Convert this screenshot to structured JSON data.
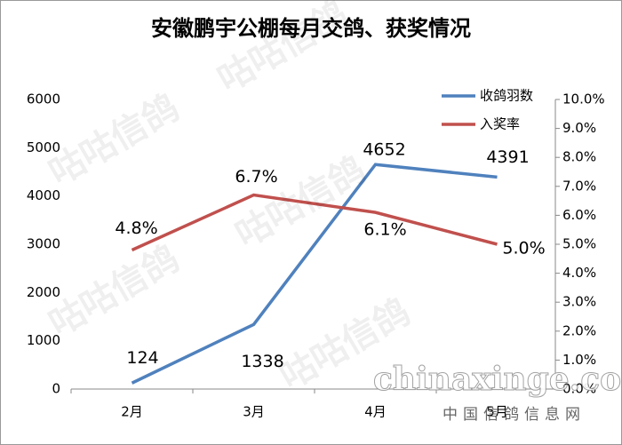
{
  "chart_data": {
    "type": "line",
    "title": "安徽鹏宇公棚每月交鸽、获奖情况",
    "categories": [
      "2月",
      "3月",
      "4月",
      "5月"
    ],
    "series": [
      {
        "name": "收鸽羽数",
        "color": "#4f81bd",
        "values": [
          124,
          1338,
          4652,
          4391
        ]
      },
      {
        "name": "入奖率",
        "color": "#c0504d",
        "axis": "y2",
        "values": [
          4.8,
          6.7,
          6.1,
          5.0
        ],
        "value_labels": [
          "4.8%",
          "6.7%",
          "6.1%",
          "5.0%"
        ]
      }
    ],
    "ylim": [
      0,
      6000
    ],
    "yticks": [
      0,
      1000,
      2000,
      3000,
      4000,
      5000,
      6000
    ],
    "y2lim": [
      0,
      10
    ],
    "y2ticks": [
      {
        "value": 0,
        "label": "0.0%"
      },
      {
        "value": 1,
        "label": "1.0%"
      },
      {
        "value": 2,
        "label": "2.0%"
      },
      {
        "value": 3,
        "label": "3.0%"
      },
      {
        "value": 4,
        "label": "4.0%"
      },
      {
        "value": 5,
        "label": "5.0%"
      },
      {
        "value": 6,
        "label": "6.0%"
      },
      {
        "value": 7,
        "label": "7.0%"
      },
      {
        "value": 8,
        "label": "8.0%"
      },
      {
        "value": 9,
        "label": "9.0%"
      },
      {
        "value": 10,
        "label": "10.0%"
      }
    ],
    "legend": "top-right",
    "annotations": [
      "咕咕信鸽",
      "chinaxinge.com",
      "中国信鸽信息网"
    ]
  }
}
